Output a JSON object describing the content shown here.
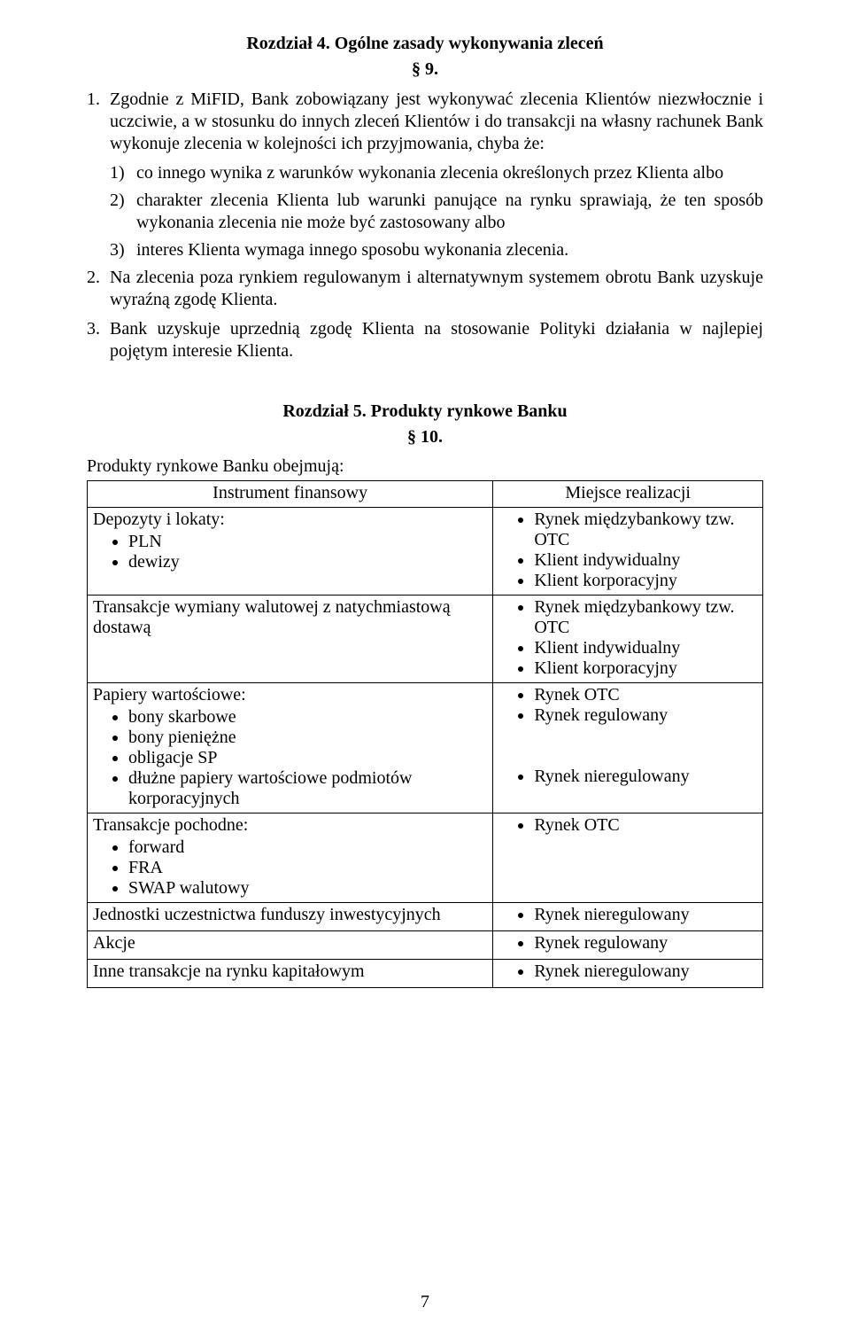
{
  "chapter4": {
    "title": "Rozdział 4. Ogólne zasady wykonywania zleceń",
    "section": "§ 9.",
    "p1_num": "1.",
    "p1_text": "Zgodnie z MiFID, Bank zobowiązany jest wykonywać zlecenia Klientów niezwłocznie i uczciwie, a w stosunku do innych zleceń Klientów i do transakcji na własny rachunek Bank wykonuje zlecenia w kolejności ich przyjmowania, chyba że:",
    "s1_num": "1)",
    "s1_text": "co innego wynika z warunków wykonania zlecenia określonych przez Klienta albo",
    "s2_num": "2)",
    "s2_text": "charakter zlecenia Klienta lub warunki panujące na rynku sprawiają, że ten sposób wykonania zlecenia nie może być zastosowany albo",
    "s3_num": "3)",
    "s3_text": "interes Klienta wymaga innego sposobu wykonania zlecenia.",
    "p2_num": "2.",
    "p2_text": "Na zlecenia poza rynkiem regulowanym i alternatywnym systemem obrotu Bank uzyskuje wyraźną zgodę Klienta.",
    "p3_num": "3.",
    "p3_text": "Bank uzyskuje uprzednią zgodę Klienta na stosowanie Polityki działania w najlepiej pojętym interesie Klienta."
  },
  "chapter5": {
    "title": "Rozdział 5. Produkty rynkowe Banku",
    "section": "§ 10.",
    "intro": "Produkty rynkowe Banku obejmują:",
    "header_left": "Instrument finansowy",
    "header_right": "Miejsce realizacji",
    "rows": [
      {
        "left_title": "Depozyty i lokaty:",
        "left_items": [
          "PLN",
          "dewizy"
        ],
        "right_items": [
          "Rynek międzybankowy tzw. OTC",
          "Klient indywidualny",
          "Klient korporacyjny"
        ]
      },
      {
        "left_title": "Transakcje wymiany walutowej z natychmiastową dostawą",
        "left_items": [],
        "right_items": [
          "Rynek międzybankowy tzw. OTC",
          "Klient indywidualny",
          "Klient korporacyjny"
        ]
      },
      {
        "left_title": "Papiery wartościowe:",
        "left_items": [
          "bony skarbowe",
          "bony pieniężne",
          "obligacje SP",
          "dłużne papiery wartościowe podmiotów korporacyjnych"
        ],
        "right_items": [
          "Rynek OTC",
          "Rynek regulowany",
          "",
          "",
          "Rynek nieregulowany"
        ]
      },
      {
        "left_title": "Transakcje pochodne:",
        "left_items": [
          "forward",
          "FRA",
          "SWAP walutowy"
        ],
        "right_items": [
          "Rynek OTC"
        ]
      },
      {
        "left_title": "Jednostki uczestnictwa funduszy inwestycyjnych",
        "left_items": [],
        "right_items": [
          "Rynek nieregulowany"
        ]
      },
      {
        "left_title": "Akcje",
        "left_items": [],
        "right_items": [
          "Rynek regulowany"
        ]
      },
      {
        "left_title": "Inne transakcje na rynku kapitałowym",
        "left_items": [],
        "right_items": [
          "Rynek nieregulowany"
        ]
      }
    ]
  },
  "page_number": "7"
}
